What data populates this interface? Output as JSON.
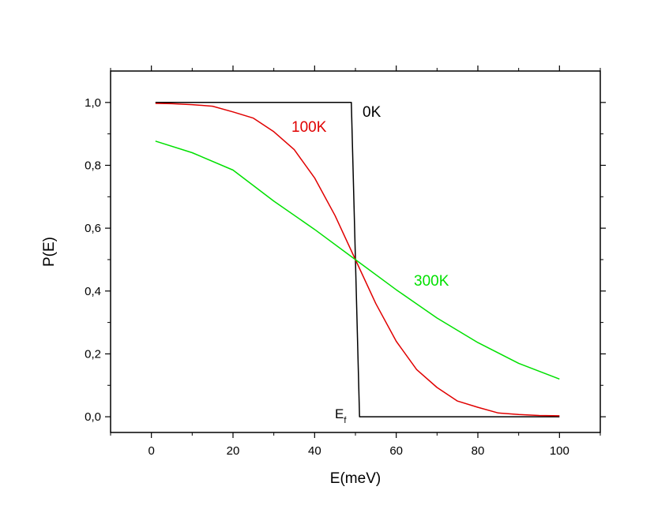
{
  "chart_data": {
    "type": "line",
    "xlabel": "E(meV)",
    "ylabel": "P(E)",
    "xlim": [
      -10,
      110
    ],
    "ylim": [
      -0.05,
      1.1
    ],
    "x_ticks": [
      0,
      20,
      40,
      60,
      80,
      100
    ],
    "y_ticks": [
      0.0,
      0.2,
      0.4,
      0.6,
      0.8,
      1.0
    ],
    "x_tick_labels": [
      "0",
      "20",
      "40",
      "60",
      "80",
      "100"
    ],
    "y_tick_labels": [
      "0,0",
      "0,2",
      "0,4",
      "0,6",
      "0,8",
      "1,0"
    ],
    "grid": false,
    "legend": "none",
    "fermi_energy_meV": 50,
    "series": [
      {
        "name": "0K",
        "color": "#000000",
        "x": [
          1,
          49,
          51,
          100
        ],
        "y": [
          1.0,
          1.0,
          0.0,
          0.0
        ]
      },
      {
        "name": "100K",
        "color": "#e00000",
        "x": [
          1,
          5,
          10,
          15,
          20,
          25,
          30,
          35,
          40,
          45,
          50,
          55,
          60,
          65,
          70,
          75,
          80,
          85,
          90,
          95,
          100
        ],
        "y": [
          0.997,
          0.996,
          0.993,
          0.988,
          0.97,
          0.95,
          0.907,
          0.85,
          0.76,
          0.64,
          0.5,
          0.36,
          0.24,
          0.15,
          0.093,
          0.05,
          0.03,
          0.012,
          0.007,
          0.004,
          0.003
        ]
      },
      {
        "name": "300K",
        "color": "#00e000",
        "x": [
          1,
          10,
          20,
          30,
          40,
          50,
          60,
          70,
          80,
          90,
          100
        ],
        "y": [
          0.877,
          0.84,
          0.785,
          0.686,
          0.596,
          0.5,
          0.404,
          0.314,
          0.236,
          0.17,
          0.12
        ]
      }
    ],
    "annotations": [
      {
        "text": "0K",
        "color": "#000000"
      },
      {
        "text": "100K",
        "color": "#e00000"
      },
      {
        "text": "300K",
        "color": "#00e000"
      },
      {
        "text": "E",
        "subscript": "f",
        "color": "#000000"
      }
    ]
  }
}
